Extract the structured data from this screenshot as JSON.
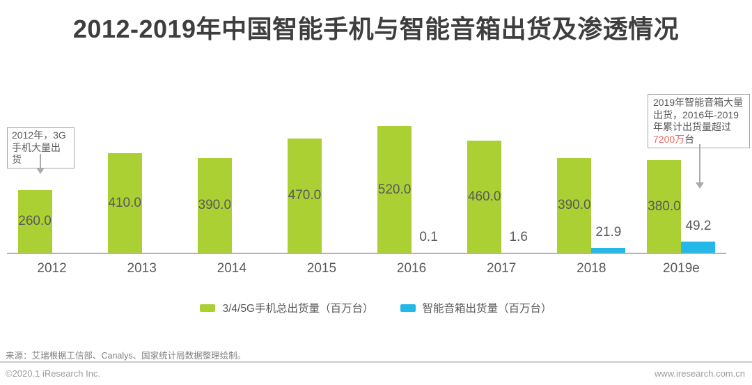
{
  "title": "2012-2019年中国智能手机与智能音箱出货及渗透情况",
  "chart_data": {
    "type": "bar",
    "categories": [
      "2012",
      "2013",
      "2014",
      "2015",
      "2016",
      "2017",
      "2018",
      "2019e"
    ],
    "series": [
      {
        "name": "3/4/5G手机总出货量（百万台）",
        "color": "#abd034",
        "values": [
          260.0,
          410.0,
          390.0,
          470.0,
          520.0,
          460.0,
          390.0,
          380.0
        ],
        "labels": [
          "260.0",
          "410.0",
          "390.0",
          "470.0",
          "520.0",
          "460.0",
          "390.0",
          "380.0"
        ],
        "label_position": "inside-center"
      },
      {
        "name": "智能音箱出货量（百万台）",
        "color": "#24b8e8",
        "values": [
          null,
          null,
          null,
          null,
          0.1,
          1.6,
          21.9,
          49.2
        ],
        "labels": [
          null,
          null,
          null,
          null,
          "0.1",
          "1.6",
          "21.9",
          "49.2"
        ],
        "label_position": "outside-top"
      }
    ],
    "ylim": [
      0,
      520
    ],
    "grid": false,
    "y_axis_visible": false,
    "legend_position": "bottom",
    "axis_color": "#b3b3b3"
  },
  "annotations": {
    "left": {
      "line1": "2012年，3G",
      "line2": "手机大量出货"
    },
    "right": {
      "lines": [
        "2019年智能音箱大量",
        "出货，2016年-2019",
        "年累计出货量超过"
      ],
      "highlight": "7200万",
      "suffix": "台",
      "highlight_color": "#e9675f"
    }
  },
  "legend": {
    "items": [
      {
        "label": "3/4/5G手机总出货量（百万台）",
        "color": "#abd034"
      },
      {
        "label": "智能音箱出货量（百万台）",
        "color": "#24b8e8"
      }
    ]
  },
  "source": "来源：艾瑞根据工信部、Canalys、国家统计局数据整理绘制。",
  "footer": {
    "copyright": "©2020.1 iResearch Inc.",
    "website": "www.iresearch.com.cn"
  }
}
